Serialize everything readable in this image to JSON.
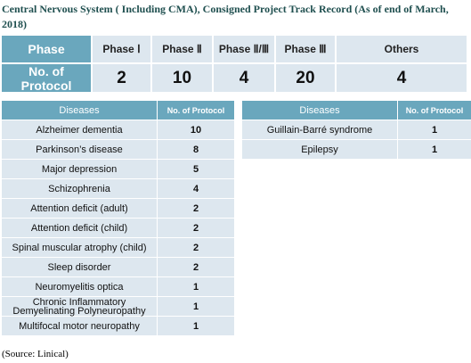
{
  "title": "Central Nervous System ( Including CMA), Consigned Project Track Record (As of end of March, 2018)",
  "phase_table": {
    "header": [
      "Phase",
      "Phase Ⅰ",
      "Phase Ⅱ",
      "Phase Ⅱ/Ⅲ",
      "Phase Ⅲ",
      "Others"
    ],
    "row": [
      "No. of Protocol",
      2,
      10,
      4,
      20,
      4
    ]
  },
  "diseases_left": {
    "header": [
      "Diseases",
      "No. of Protocol"
    ],
    "rows": [
      [
        "Alzheimer dementia",
        10
      ],
      [
        "Parkinson’s disease",
        8
      ],
      [
        "Major depression",
        5
      ],
      [
        "Schizophrenia",
        4
      ],
      [
        "Attention deficit (adult)",
        2
      ],
      [
        "Attention deficit (child)",
        2
      ],
      [
        "Spinal muscular atrophy (child)",
        2
      ],
      [
        "Sleep disorder",
        2
      ],
      [
        "Neuromyelitis optica",
        1
      ],
      [
        "Chronic Inflammatory Demyelinating Polyneuropathy",
        1
      ],
      [
        "Multifocal motor neuropathy",
        1
      ]
    ]
  },
  "diseases_right": {
    "header": [
      "Diseases",
      "No. of Protocol"
    ],
    "rows": [
      [
        "Guillain-Barré syndrome",
        1
      ],
      [
        "Epilepsy",
        1
      ]
    ]
  },
  "source": "(Source: Linical)"
}
